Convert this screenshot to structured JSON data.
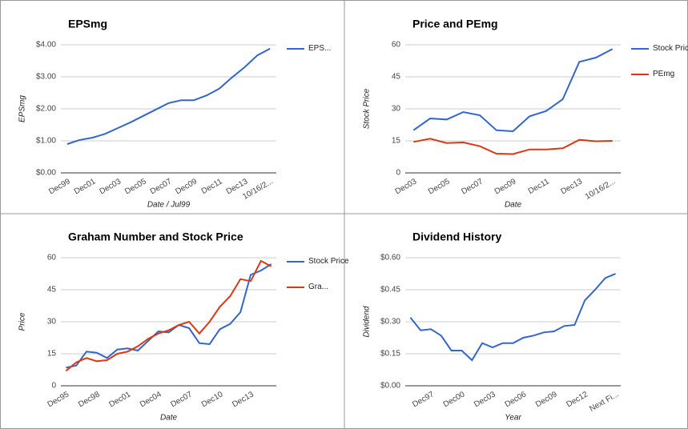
{
  "chart_data": [
    {
      "type": "line",
      "title": "EPSmg",
      "y_label": "EPSmg",
      "x_label": "Date / Jul99",
      "categories": [
        "Dec99",
        null,
        "Dec01",
        null,
        "Dec03",
        null,
        "Dec05",
        null,
        "Dec07",
        null,
        "Dec09",
        null,
        "Dec11",
        null,
        "Dec13",
        null,
        "10/16/2..."
      ],
      "series": [
        {
          "name": "EPS...",
          "color": "#3366cc",
          "values": [
            0.9,
            1.03,
            1.1,
            1.22,
            1.4,
            1.58,
            1.78,
            1.98,
            2.18,
            2.27,
            2.27,
            2.42,
            2.63,
            2.98,
            3.3,
            3.67,
            3.88
          ]
        }
      ],
      "ylim": [
        0,
        4
      ],
      "yticks": [
        {
          "value": 0,
          "label": "$0.00"
        },
        {
          "value": 1,
          "label": "$1.00"
        },
        {
          "value": 2,
          "label": "$2.00"
        },
        {
          "value": 3,
          "label": "$3.00"
        },
        {
          "value": 4,
          "label": "$4.00"
        }
      ],
      "grid": true
    },
    {
      "type": "line",
      "title": "Price and PEmg",
      "y_label": "Stock Price",
      "x_label": "Date",
      "categories": [
        "Dec03",
        null,
        "Dec05",
        null,
        "Dec07",
        null,
        "Dec09",
        null,
        "Dec11",
        null,
        "Dec13",
        null,
        "10/16/2..."
      ],
      "series": [
        {
          "name": "Stock Price",
          "color": "#3366cc",
          "values": [
            20,
            25.5,
            25,
            28.5,
            27,
            20,
            19.5,
            26.5,
            29,
            34.5,
            52,
            54,
            58
          ]
        },
        {
          "name": "PEmg",
          "color": "#dc3912",
          "values": [
            14.5,
            16,
            14,
            14.3,
            12.5,
            9,
            8.8,
            11,
            11,
            11.5,
            15.5,
            14.8,
            15
          ]
        }
      ],
      "ylim": [
        0,
        60
      ],
      "yticks": [
        0,
        15,
        30,
        45,
        60
      ],
      "grid": true
    },
    {
      "type": "line",
      "title": "Graham Number and Stock Price",
      "y_label": "Price",
      "x_label": "Date",
      "categories": [
        "Dec95",
        null,
        null,
        "Dec98",
        null,
        null,
        "Dec01",
        null,
        null,
        "Dec04",
        null,
        null,
        "Dec07",
        null,
        null,
        "Dec10",
        null,
        null,
        "Dec13",
        null,
        null
      ],
      "series": [
        {
          "name": "Stock Price",
          "color": "#3366cc",
          "values": [
            8.5,
            9.5,
            16,
            15.5,
            13,
            17,
            17.5,
            16.5,
            21,
            25.5,
            25,
            28.5,
            27,
            20,
            19.5,
            26.5,
            29,
            34.5,
            52,
            54,
            57
          ]
        },
        {
          "name": "Gra...",
          "color": "#dc3912",
          "values": [
            7,
            11,
            13,
            11.5,
            12,
            15,
            16,
            18.5,
            22,
            24.5,
            26,
            28.5,
            30,
            24.5,
            30,
            37,
            42,
            50,
            49,
            58.5,
            56
          ]
        }
      ],
      "ylim": [
        0,
        60
      ],
      "yticks": [
        0,
        15,
        30,
        45,
        60
      ],
      "grid": true
    },
    {
      "type": "line",
      "title": "Dividend History",
      "y_label": "Dividend",
      "x_label": "Year",
      "categories": [
        null,
        null,
        "Dec97",
        null,
        null,
        "Dec00",
        null,
        null,
        "Dec03",
        null,
        null,
        "Dec06",
        null,
        null,
        "Dec09",
        null,
        null,
        "Dec12",
        null,
        null,
        "Next Fi..."
      ],
      "series": [
        {
          "color": "#3366cc",
          "values": [
            0.32,
            0.26,
            0.265,
            0.235,
            0.165,
            0.165,
            0.12,
            0.2,
            0.18,
            0.2,
            0.2,
            0.225,
            0.235,
            0.25,
            0.255,
            0.28,
            0.285,
            0.4,
            0.45,
            0.505,
            0.525
          ]
        }
      ],
      "ylim": [
        0,
        0.6
      ],
      "yticks": [
        {
          "value": 0,
          "label": "$0.00"
        },
        {
          "value": 0.15,
          "label": "$0.15"
        },
        {
          "value": 0.3,
          "label": "$0.30"
        },
        {
          "value": 0.45,
          "label": "$0.45"
        },
        {
          "value": 0.6,
          "label": "$0.60"
        }
      ],
      "grid": true
    }
  ]
}
